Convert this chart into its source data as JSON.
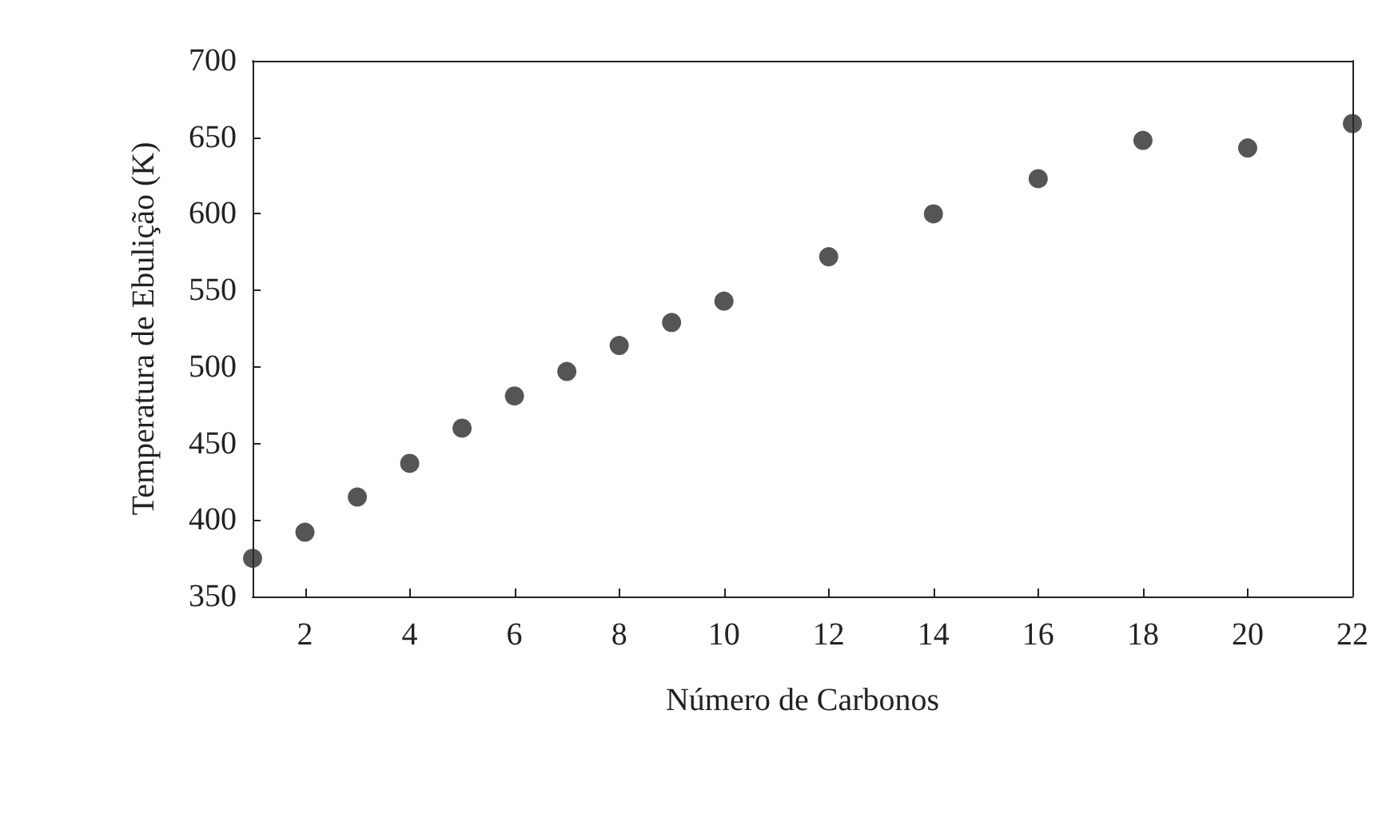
{
  "chart_data": {
    "type": "scatter",
    "xlabel": "Número de Carbonos",
    "ylabel": "Temperatura de Ebulição (K)",
    "x": [
      1,
      2,
      3,
      4,
      5,
      6,
      7,
      8,
      9,
      10,
      12,
      14,
      16,
      18,
      20,
      22
    ],
    "values": [
      375,
      392,
      415,
      437,
      460,
      481,
      497,
      514,
      529,
      543,
      572,
      600,
      623,
      648,
      643,
      659
    ],
    "color": "#2a2a2a",
    "marker": "circle",
    "grid": false,
    "xlim": [
      1,
      22
    ],
    "xticks": [
      2,
      4,
      6,
      8,
      10,
      12,
      14,
      16,
      18,
      20,
      22
    ],
    "ylim": [
      350,
      700
    ],
    "yticks": [
      350,
      400,
      450,
      500,
      550,
      600,
      650,
      700
    ]
  }
}
